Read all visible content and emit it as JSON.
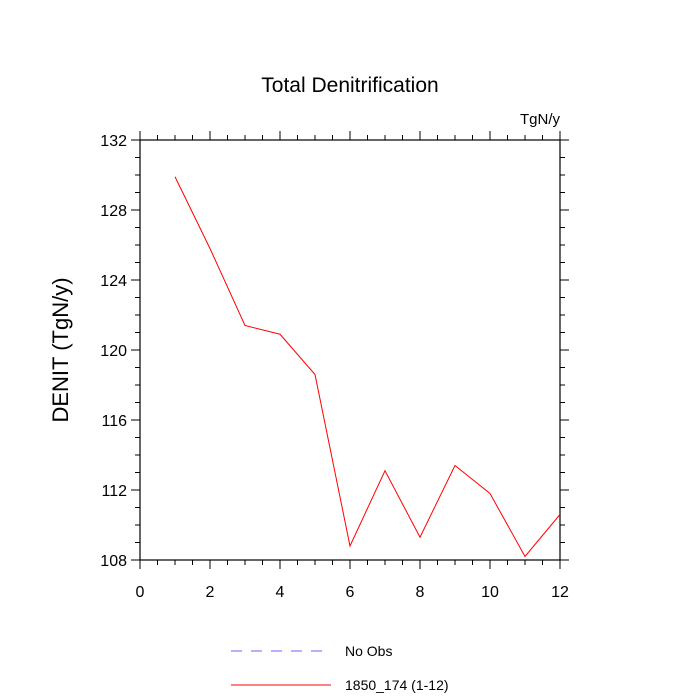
{
  "chart_data": {
    "type": "line",
    "title": "Total Denitrification",
    "units_label": "TgN/y",
    "xlabel": "",
    "ylabel": "DENIT  (TgN/y)",
    "xlim": [
      0,
      12
    ],
    "ylim": [
      108,
      132
    ],
    "x_ticks": [
      0,
      2,
      4,
      6,
      8,
      10,
      12
    ],
    "y_ticks": [
      108,
      112,
      116,
      120,
      124,
      128,
      132
    ],
    "grid": false,
    "legend_position": "bottom-center",
    "series": [
      {
        "name": "No Obs",
        "color": "#6666ff",
        "style": "dashed",
        "x": [],
        "values": []
      },
      {
        "name": "1850_174 (1-12)",
        "color": "#ff0000",
        "style": "solid",
        "x": [
          1,
          2,
          3,
          4,
          5,
          6,
          7,
          8,
          9,
          10,
          11,
          12
        ],
        "values": [
          129.9,
          125.8,
          121.4,
          120.9,
          118.6,
          108.8,
          113.1,
          109.3,
          113.4,
          111.8,
          108.2,
          110.6
        ]
      }
    ]
  }
}
